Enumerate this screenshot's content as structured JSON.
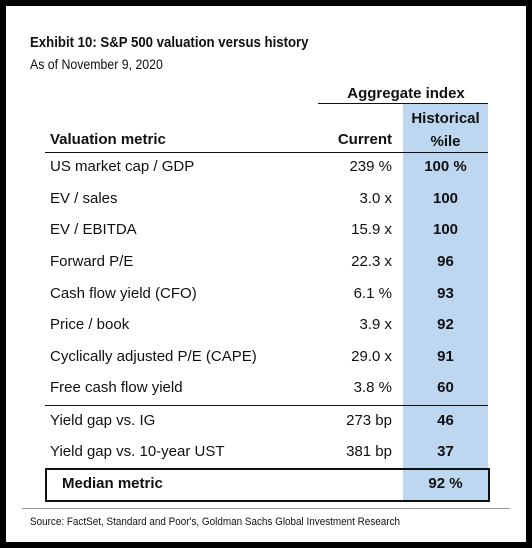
{
  "header": {
    "title": "Exhibit 10: S&P 500 valuation versus history",
    "subtitle": "As of November 9, 2020"
  },
  "table": {
    "group_header": "Aggregate index",
    "columns": [
      "Valuation metric",
      "Current",
      "Historical %ile"
    ],
    "rows": [
      [
        "US market cap / GDP",
        "239 %",
        "100 %"
      ],
      [
        "EV / sales",
        "3.0 x",
        "100"
      ],
      [
        "EV / EBITDA",
        "15.9 x",
        "100"
      ],
      [
        "Forward P/E",
        "22.3 x",
        "96"
      ],
      [
        "Cash flow yield (CFO)",
        "6.1 %",
        "93"
      ],
      [
        "Price / book",
        "3.9 x",
        "92"
      ],
      [
        "Cyclically adjusted P/E (CAPE)",
        "29.0 x",
        "91"
      ],
      [
        "Free cash flow yield",
        "3.8 %",
        "60"
      ],
      [
        "Yield gap vs. IG",
        "273 bp",
        "46"
      ],
      [
        "Yield gap vs. 10-year UST",
        "381 bp",
        "37"
      ]
    ],
    "summary": [
      "Median metric",
      "92 %"
    ]
  },
  "footer": {
    "source": "Source: FactSet, Standard and Poor's, Goldman Sachs Global Investment Research"
  }
}
